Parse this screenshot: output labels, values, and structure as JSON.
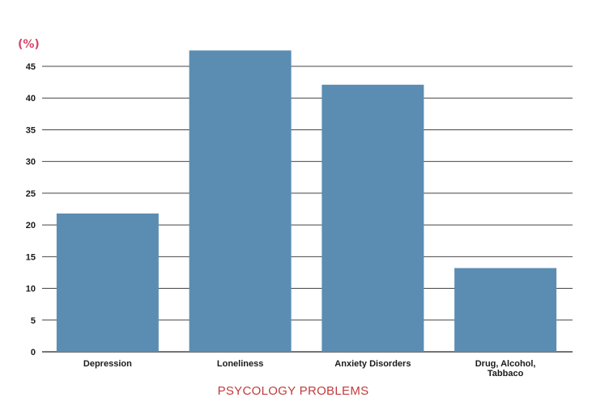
{
  "chart_data": {
    "type": "bar",
    "categories": [
      [
        "Depression"
      ],
      [
        "Loneliness"
      ],
      [
        "Anxiety Disorders"
      ],
      [
        "Drug, Alcohol,",
        "Tabbaco"
      ]
    ],
    "values": [
      21.8,
      47.5,
      42.1,
      13.2
    ],
    "ylabel": "(%)",
    "xlabel": "PSYCOLOGY PROBLEMS",
    "ylim": [
      0,
      48
    ],
    "yticks": [
      0,
      5,
      10,
      15,
      20,
      25,
      30,
      35,
      40,
      45
    ],
    "grid": true,
    "colors": {
      "bar": "#5b8db3",
      "ylabel": "#d4456b",
      "xlabel": "#c23b3b"
    }
  }
}
